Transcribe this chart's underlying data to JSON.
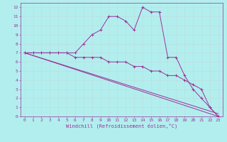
{
  "title": "",
  "xlabel": "Windchill (Refroidissement éolien,°C)",
  "bg_color": "#b2eeee",
  "grid_color": "#bbdddd",
  "line_color": "#993399",
  "xlim": [
    -0.5,
    23.5
  ],
  "ylim": [
    0,
    12.5
  ],
  "xticks": [
    0,
    1,
    2,
    3,
    4,
    5,
    6,
    7,
    8,
    9,
    10,
    11,
    12,
    13,
    14,
    15,
    16,
    17,
    18,
    19,
    20,
    21,
    22,
    23
  ],
  "yticks": [
    0,
    1,
    2,
    3,
    4,
    5,
    6,
    7,
    8,
    9,
    10,
    11,
    12
  ],
  "line1_x": [
    0,
    1,
    2,
    3,
    4,
    5,
    6,
    7,
    8,
    9,
    10,
    11,
    12,
    13,
    14,
    15,
    16,
    17,
    18,
    19,
    20,
    21,
    22,
    23
  ],
  "line1_y": [
    7,
    7,
    7,
    7,
    7,
    7,
    7,
    8,
    9,
    9.5,
    11,
    11,
    10.5,
    9.5,
    12,
    11.5,
    11.5,
    6.5,
    6.5,
    4.5,
    3,
    2,
    1,
    0
  ],
  "line2_x": [
    0,
    1,
    2,
    3,
    4,
    5,
    6,
    7,
    8,
    9,
    10,
    11,
    12,
    13,
    14,
    15,
    16,
    17,
    18,
    19,
    20,
    21,
    22,
    23
  ],
  "line2_y": [
    7,
    7,
    7,
    7,
    7,
    7,
    6.5,
    6.5,
    6.5,
    6.5,
    6,
    6,
    6,
    5.5,
    5.5,
    5,
    5,
    4.5,
    4.5,
    4,
    3.5,
    3,
    1,
    0
  ],
  "line3_x": [
    0,
    23
  ],
  "line3_y": [
    7,
    0
  ],
  "line4_x": [
    0,
    23
  ],
  "line4_y": [
    7,
    0.3
  ],
  "xlabel_fontsize": 5.0,
  "tick_fontsize": 4.5,
  "lw": 0.7,
  "ms": 2.5,
  "mew": 0.7
}
